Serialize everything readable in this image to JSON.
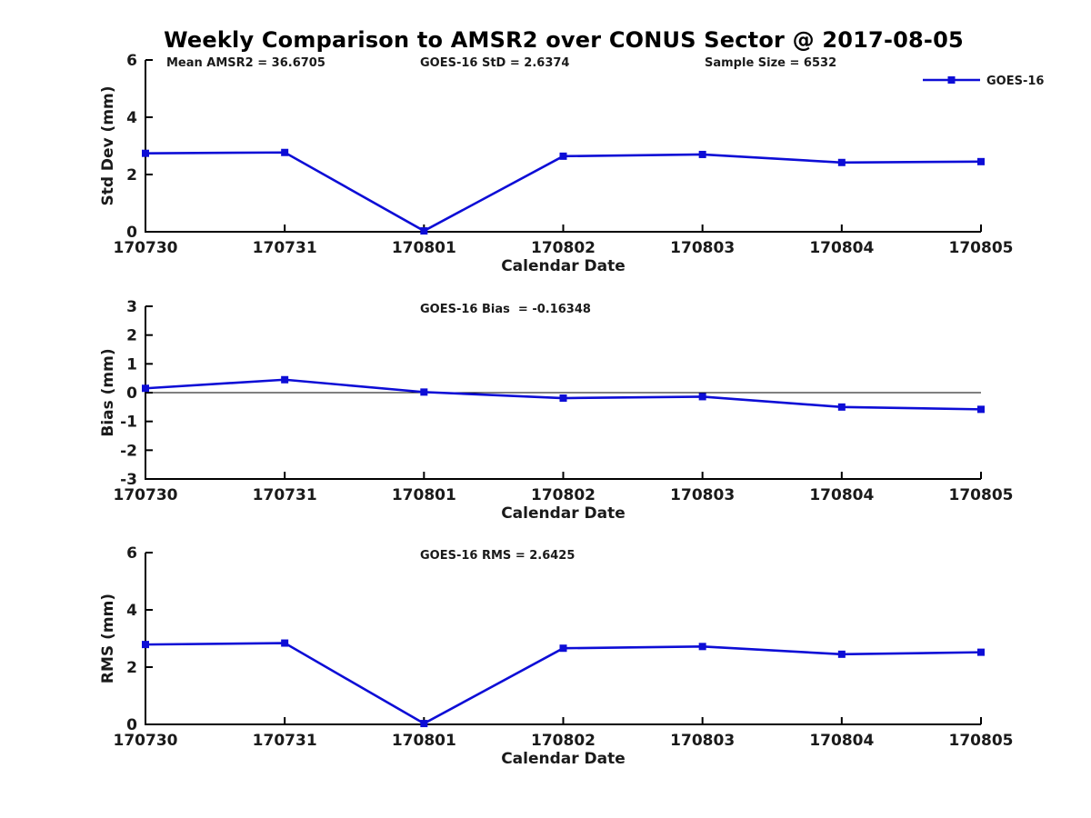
{
  "figure": {
    "title": "Weekly Comparison to AMSR2 over CONUS Sector @ 2017-08-05",
    "series_color": "#0d0dd6",
    "axis_color": "#000000",
    "text_color": "#1a1a1a",
    "background_color": "#ffffff",
    "legend": {
      "label": "GOES-16",
      "position": "top-right"
    }
  },
  "chart_data": [
    {
      "type": "line",
      "categories": [
        "170730",
        "170731",
        "170801",
        "170802",
        "170803",
        "170804",
        "170805"
      ],
      "series": [
        {
          "name": "GOES-16",
          "values": [
            2.74,
            2.77,
            0.03,
            2.64,
            2.7,
            2.42,
            2.45
          ]
        }
      ],
      "annotations": [
        {
          "text": "Mean AMSR2 = 36.6705",
          "x": 183
        },
        {
          "text": "GOES-16 StD = 2.6374",
          "x": 462
        },
        {
          "text": "Sample Size = 6532",
          "x": 775
        }
      ],
      "xlabel": "Calendar Date",
      "ylabel": "Std Dev (mm)",
      "ylim": [
        0,
        6
      ],
      "yticks": [
        0,
        2,
        4,
        6
      ],
      "grid": false,
      "zero_line": false,
      "legend": true,
      "legend_position": "top-right"
    },
    {
      "type": "line",
      "categories": [
        "170730",
        "170731",
        "170801",
        "170802",
        "170803",
        "170804",
        "170805"
      ],
      "series": [
        {
          "name": "GOES-16",
          "values": [
            0.15,
            0.45,
            0.02,
            -0.19,
            -0.14,
            -0.5,
            -0.58
          ]
        }
      ],
      "annotations": [
        {
          "text": "GOES-16 Bias  = -0.16348",
          "x": 462
        }
      ],
      "xlabel": "Calendar Date",
      "ylabel": "Bias (mm)",
      "ylim": [
        -3,
        3
      ],
      "yticks": [
        3,
        2,
        1,
        0,
        -1,
        -2,
        -3
      ],
      "grid": false,
      "zero_line": true,
      "legend": false
    },
    {
      "type": "line",
      "categories": [
        "170730",
        "170731",
        "170801",
        "170802",
        "170803",
        "170804",
        "170805"
      ],
      "series": [
        {
          "name": "GOES-16",
          "values": [
            2.79,
            2.84,
            0.03,
            2.66,
            2.72,
            2.45,
            2.52
          ]
        }
      ],
      "annotations": [
        {
          "text": "GOES-16 RMS = 2.6425",
          "x": 462
        }
      ],
      "xlabel": "Calendar Date",
      "ylabel": "RMS (mm)",
      "ylim": [
        0,
        6
      ],
      "yticks": [
        0,
        2,
        4,
        6
      ],
      "grid": false,
      "zero_line": false,
      "legend": false
    }
  ]
}
